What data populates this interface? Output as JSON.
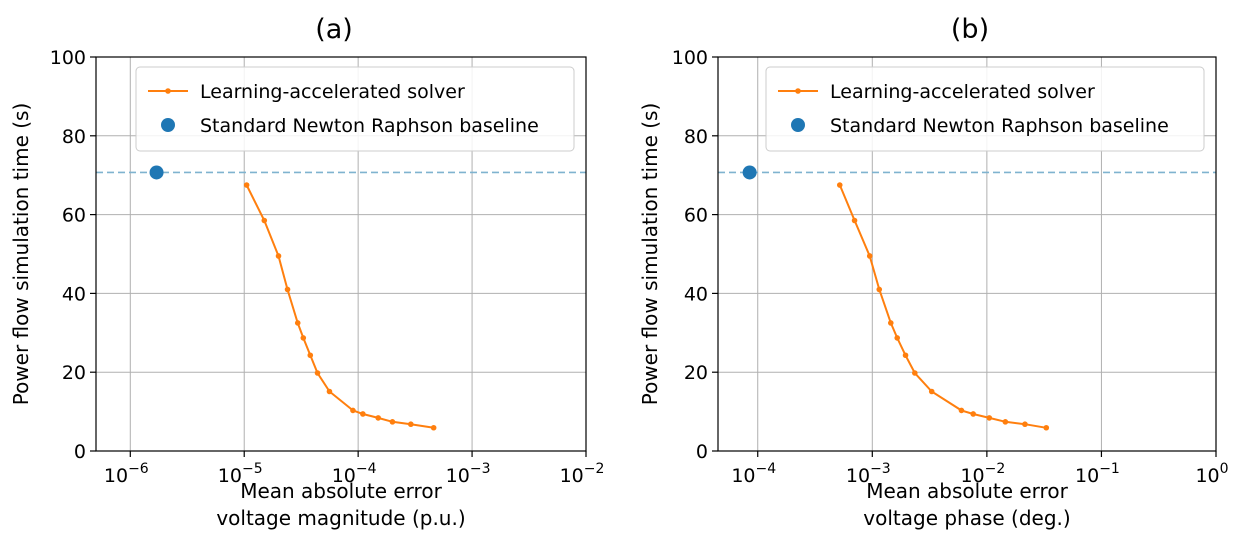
{
  "colors": {
    "solver": "#ff7f0e",
    "baseline": "#1f77b4",
    "baseline_line": "#7fb3cf",
    "grid": "#b0b0b0"
  },
  "chart_data": [
    {
      "type": "line",
      "title": "(a)",
      "xlabel": [
        "Mean absolute error",
        "voltage magnitude (p.u.)"
      ],
      "ylabel": "Power flow simulation time (s)",
      "xscale": "log",
      "xlim": [
        5e-07,
        0.01
      ],
      "ylim": [
        0,
        100
      ],
      "xticks": [
        1e-06,
        1e-05,
        0.0001,
        0.001,
        0.01
      ],
      "xtick_exponents": [
        "−6",
        "−5",
        "−4",
        "−3",
        "−2"
      ],
      "yticks": [
        0,
        20,
        40,
        60,
        80,
        100
      ],
      "grid": true,
      "legend_position": "upper-right",
      "series": [
        {
          "name": "Learning-accelerated solver",
          "kind": "line-markers",
          "x": [
            1.05e-05,
            1.5e-05,
            2e-05,
            2.4e-05,
            2.95e-05,
            3.3e-05,
            3.8e-05,
            4.4e-05,
            5.6e-05,
            9e-05,
            0.00011,
            0.00015,
            0.0002,
            0.00029,
            0.00046
          ],
          "y": [
            67.5,
            58.5,
            49.5,
            41.0,
            32.5,
            28.7,
            24.3,
            19.8,
            15.1,
            10.3,
            9.4,
            8.4,
            7.4,
            6.8,
            5.9
          ]
        },
        {
          "name": "Standard Newton Raphson baseline",
          "kind": "point-with-hline",
          "x": [
            1.7e-06
          ],
          "y": [
            70.7
          ]
        }
      ]
    },
    {
      "type": "line",
      "title": "(b)",
      "xlabel": [
        "Mean absolute error",
        "voltage phase (deg.)"
      ],
      "ylabel": "Power flow simulation time (s)",
      "xscale": "log",
      "xlim": [
        4.5e-05,
        1
      ],
      "ylim": [
        0,
        100
      ],
      "xticks": [
        0.0001,
        0.001,
        0.01,
        0.1,
        1
      ],
      "xtick_exponents": [
        "−4",
        "−3",
        "−2",
        "−1",
        "0"
      ],
      "yticks": [
        0,
        20,
        40,
        60,
        80,
        100
      ],
      "grid": true,
      "legend_position": "upper-right",
      "series": [
        {
          "name": "Learning-accelerated solver",
          "kind": "line-markers",
          "x": [
            0.00052,
            0.0007,
            0.00095,
            0.00115,
            0.00145,
            0.00165,
            0.00195,
            0.00235,
            0.0033,
            0.006,
            0.0076,
            0.0105,
            0.0145,
            0.0215,
            0.033
          ],
          "y": [
            67.5,
            58.5,
            49.5,
            41.0,
            32.5,
            28.7,
            24.3,
            19.8,
            15.1,
            10.3,
            9.4,
            8.4,
            7.4,
            6.8,
            5.9
          ]
        },
        {
          "name": "Standard Newton Raphson baseline",
          "kind": "point-with-hline",
          "x": [
            8.5e-05
          ],
          "y": [
            70.7
          ]
        }
      ]
    }
  ]
}
